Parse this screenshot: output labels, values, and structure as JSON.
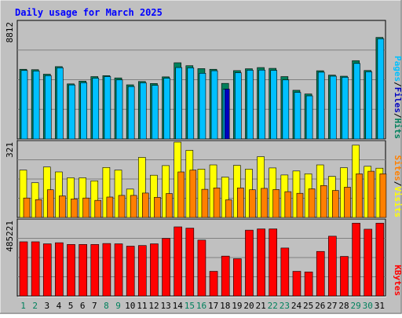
{
  "chart_data": {
    "type": "bar",
    "title": "Daily usage for March 2025",
    "categories": [
      "1",
      "2",
      "3",
      "4",
      "5",
      "6",
      "7",
      "8",
      "9",
      "10",
      "11",
      "12",
      "13",
      "14",
      "15",
      "16",
      "17",
      "18",
      "19",
      "20",
      "21",
      "22",
      "23",
      "24",
      "25",
      "26",
      "27",
      "28",
      "29",
      "30",
      "31"
    ],
    "weekend_days": [
      "1",
      "2",
      "8",
      "9",
      "15",
      "16",
      "22",
      "23",
      "29",
      "30"
    ],
    "panels": [
      {
        "id": "requests",
        "tick_label": "8812",
        "ylim": [
          0,
          8812
        ],
        "legend": [
          "Pages",
          "Files",
          "Hits"
        ],
        "series": [
          {
            "name": "Hits",
            "color": "#00805c",
            "values": [
              5250,
              5220,
              4880,
              5450,
              4150,
              4360,
              4700,
              4770,
              4600,
              4080,
              4330,
              4180,
              4680,
              5740,
              5520,
              5300,
              5250,
              4190,
              5150,
              5290,
              5380,
              5320,
              4700,
              3670,
              3390,
              5140,
              4810,
              4730,
              5900,
              5160,
              7650
            ]
          },
          {
            "name": "Files",
            "color": "#00c0ff",
            "values": [
              5160,
              5120,
              4770,
              5360,
              4070,
              4240,
              4580,
              4700,
              4450,
              3950,
              4230,
              4040,
              4580,
              5380,
              5360,
              4950,
              5140,
              3740,
              4990,
              5180,
              5190,
              5170,
              4450,
              3510,
              3250,
              5030,
              4730,
              4650,
              5690,
              5060,
              7550
            ]
          },
          {
            "name": "Pages",
            "color": "#0000c0",
            "values": [
              0,
              0,
              0,
              0,
              0,
              0,
              0,
              0,
              0,
              0,
              0,
              0,
              0,
              0,
              0,
              0,
              0,
              3760,
              0,
              0,
              0,
              0,
              0,
              0,
              0,
              0,
              0,
              0,
              0,
              0,
              0
            ]
          }
        ]
      },
      {
        "id": "visitors",
        "tick_label": "321",
        "ylim": [
          0,
          321
        ],
        "legend": [
          "Sites",
          "Visits"
        ],
        "series": [
          {
            "name": "Visits",
            "color": "#ffff00",
            "values": [
              202,
              148,
              215,
              194,
              169,
              169,
              156,
              213,
              202,
              121,
              256,
              180,
              221,
              321,
              286,
              206,
              224,
              172,
              222,
              206,
              259,
              211,
              181,
              198,
              186,
              224,
              175,
              212,
              308,
              218,
              210
            ]
          },
          {
            "name": "Sites",
            "color": "#ff8000",
            "values": [
              83,
              76,
              118,
              92,
              79,
              83,
              73,
              87,
              94,
              94,
              104,
              86,
              102,
              194,
              202,
              120,
              126,
              75,
              126,
              118,
              124,
              119,
              110,
              103,
              122,
              136,
              115,
              129,
              186,
              197,
              186
            ]
          }
        ]
      },
      {
        "id": "kbytes",
        "tick_label": "485221",
        "ylim": [
          0,
          485221
        ],
        "legend": [
          "KBytes"
        ],
        "series": [
          {
            "name": "KBytes",
            "color": "#ff0000",
            "values": [
              349000,
              349000,
              336000,
              343000,
              332000,
              332000,
              332000,
              338000,
              336000,
              321000,
              325000,
              336000,
              371000,
              445000,
              437000,
              360000,
              159000,
              257000,
              240000,
              424000,
              432000,
              432000,
              309000,
              159000,
              155000,
              287000,
              385000,
              255000,
              469000,
              430000,
              469000
            ]
          }
        ]
      }
    ]
  },
  "colors": {
    "frame_bg": "#c0c0c0",
    "title": "#0000ff",
    "label_blue": "#00c0ff",
    "label_darkblue": "#0000c0",
    "label_green": "#00805c",
    "label_yellow": "#ffff00",
    "label_orange": "#ff8000",
    "label_red": "#ff0000",
    "axis_text": "#000000",
    "weekend": "#00805c"
  }
}
